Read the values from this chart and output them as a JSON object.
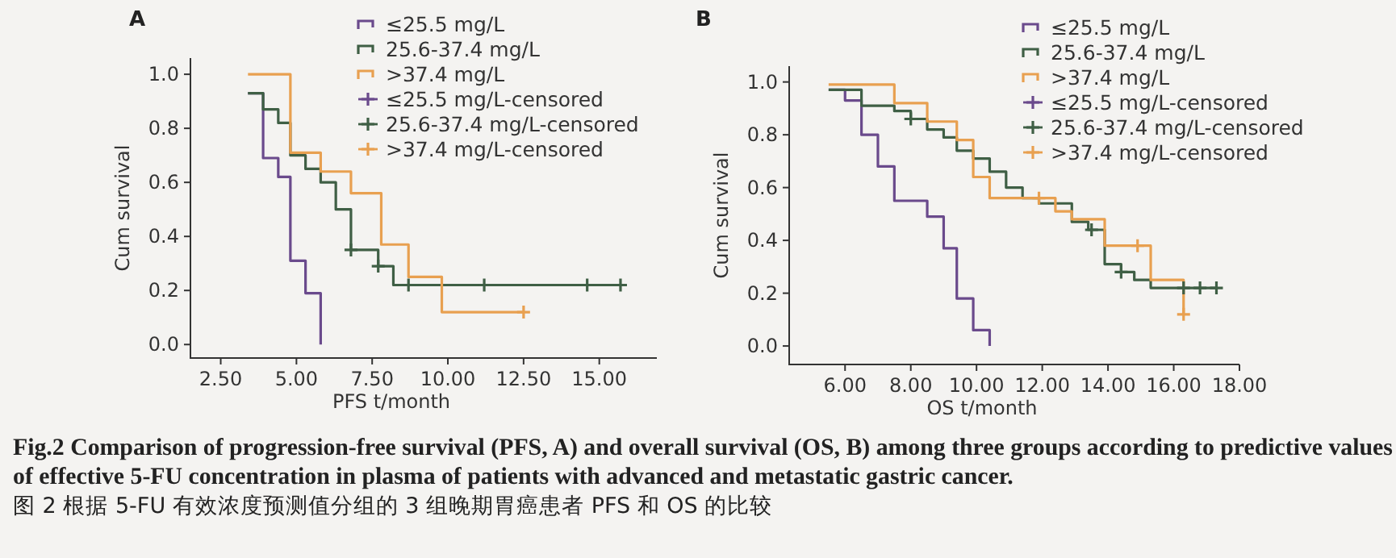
{
  "chart_data": [
    {
      "type": "step",
      "title": "A",
      "xlabel": "PFS t/month",
      "ylabel": "Cum survival",
      "legend": "top right",
      "xlim": [
        1.5,
        16.9
      ],
      "ylim": [
        -0.05,
        1.06
      ],
      "xticks": [
        {
          "value": 2.5,
          "label": "2.50"
        },
        {
          "value": 5,
          "label": "5.00"
        },
        {
          "value": 7.5,
          "label": "7.50"
        },
        {
          "value": 10,
          "label": "10.00"
        },
        {
          "value": 12.5,
          "label": "12.50"
        },
        {
          "value": 15,
          "label": "15.00"
        }
      ],
      "yticks": [
        {
          "value": 0,
          "label": "0.0"
        },
        {
          "value": 0.2,
          "label": "0.2"
        },
        {
          "value": 0.4,
          "label": "0.4"
        },
        {
          "value": 0.6,
          "label": "0.6"
        },
        {
          "value": 0.8,
          "label": "0.8"
        },
        {
          "value": 1,
          "label": "1.0"
        }
      ],
      "series": [
        {
          "name": "≤25.5 mg/L",
          "color": "#6a4a8c",
          "x": [
            3.4,
            3.9,
            4.4,
            4.8,
            5.3,
            5.8
          ],
          "values": [
            0.93,
            0.69,
            0.62,
            0.31,
            0.19,
            0.0
          ]
        },
        {
          "name": "25.6-37.4 mg/L",
          "color": "#3f5f45",
          "x": [
            3.4,
            3.9,
            4.4,
            4.8,
            5.3,
            5.8,
            6.3,
            6.8,
            7.7,
            8.2,
            15.7
          ],
          "values": [
            0.93,
            0.87,
            0.82,
            0.7,
            0.65,
            0.6,
            0.5,
            0.35,
            0.29,
            0.22,
            0.22
          ]
        },
        {
          "name": ">37.4 mg/L",
          "color": "#e8a050",
          "x": [
            3.4,
            4.8,
            5.8,
            6.8,
            7.8,
            8.7,
            9.8,
            12.5
          ],
          "values": [
            1.0,
            0.71,
            0.64,
            0.56,
            0.37,
            0.25,
            0.12,
            0.12
          ]
        },
        {
          "name": "≤25.5 mg/L-censored",
          "type": "scatter",
          "marker": "cross",
          "color": "#6a4a8c"
        },
        {
          "name": "25.6-37.4 mg/L-censored",
          "type": "scatter",
          "marker": "cross",
          "color": "#3f5f45",
          "x": [
            6.8,
            7.7,
            8.7,
            11.2,
            14.6,
            15.7
          ],
          "values": [
            0.35,
            0.29,
            0.22,
            0.22,
            0.22,
            0.22
          ]
        },
        {
          "name": ">37.4 mg/L-censored",
          "type": "scatter",
          "marker": "cross",
          "color": "#e8a050",
          "x": [
            12.5
          ],
          "values": [
            0.12
          ]
        }
      ],
      "annotations": [
        "Fig.2 Comparison of progression-free survival (PFS, A) and overall survival (OS, B) among three groups according to predictive values of effective 5-FU concentration in plasma of patients with advanced and metastatic gastric cancer.",
        "图 2 根据 5-FU 有效浓度预测值分组的 3 组晚期胃癌患者 PFS 和 OS 的比较"
      ]
    },
    {
      "type": "step",
      "title": "B",
      "xlabel": "OS t/month",
      "ylabel": "Cum survival",
      "legend": "top right",
      "xlim": [
        4.3,
        18
      ],
      "ylim": [
        -0.07,
        1.06
      ],
      "xticks": [
        {
          "value": 6,
          "label": "6.00"
        },
        {
          "value": 8,
          "label": "8.00"
        },
        {
          "value": 10,
          "label": "10.00"
        },
        {
          "value": 12,
          "label": "12.00"
        },
        {
          "value": 14,
          "label": "14.00"
        },
        {
          "value": 16,
          "label": "16.00"
        },
        {
          "value": 18,
          "label": "18.00"
        }
      ],
      "yticks": [
        {
          "value": 0,
          "label": "0.0"
        },
        {
          "value": 0.2,
          "label": "0.2"
        },
        {
          "value": 0.4,
          "label": "0.4"
        },
        {
          "value": 0.6,
          "label": "0.6"
        },
        {
          "value": 0.8,
          "label": "0.8"
        },
        {
          "value": 1,
          "label": "1.0"
        }
      ],
      "series": [
        {
          "name": "≤25.5 mg/L",
          "color": "#6a4a8c",
          "x": [
            5.5,
            6.0,
            6.5,
            7.0,
            7.5,
            8.5,
            9.0,
            9.4,
            9.9,
            10.4
          ],
          "values": [
            0.97,
            0.93,
            0.8,
            0.68,
            0.55,
            0.49,
            0.37,
            0.18,
            0.06,
            0.0
          ]
        },
        {
          "name": "25.6-37.4 mg/L",
          "color": "#3f5f45",
          "x": [
            5.5,
            6.5,
            7.5,
            8.0,
            8.5,
            9.0,
            9.4,
            9.9,
            10.4,
            10.9,
            11.4,
            11.9,
            12.9,
            13.4,
            13.9,
            14.4,
            14.8,
            15.3,
            17.3
          ],
          "values": [
            0.97,
            0.91,
            0.89,
            0.86,
            0.82,
            0.79,
            0.74,
            0.71,
            0.66,
            0.6,
            0.56,
            0.54,
            0.47,
            0.44,
            0.31,
            0.28,
            0.25,
            0.22,
            0.22
          ]
        },
        {
          "name": ">37.4 mg/L",
          "color": "#e8a050",
          "x": [
            5.5,
            7.5,
            8.5,
            9.4,
            9.9,
            10.4,
            12.4,
            12.9,
            13.9,
            15.3,
            16.3
          ],
          "values": [
            0.99,
            0.92,
            0.85,
            0.78,
            0.64,
            0.56,
            0.51,
            0.48,
            0.38,
            0.25,
            0.12
          ]
        },
        {
          "name": "≤25.5 mg/L-censored",
          "type": "scatter",
          "marker": "cross",
          "color": "#6a4a8c"
        },
        {
          "name": "25.6-37.4 mg/L-censored",
          "type": "scatter",
          "marker": "cross",
          "color": "#3f5f45",
          "x": [
            8.0,
            13.5,
            14.4,
            16.3,
            16.8,
            17.3
          ],
          "values": [
            0.86,
            0.44,
            0.28,
            0.22,
            0.22,
            0.22
          ]
        },
        {
          "name": ">37.4 mg/L-censored",
          "type": "scatter",
          "marker": "cross",
          "color": "#e8a050",
          "x": [
            11.9,
            14.9,
            16.3
          ],
          "values": [
            0.56,
            0.38,
            0.12
          ]
        }
      ]
    }
  ]
}
